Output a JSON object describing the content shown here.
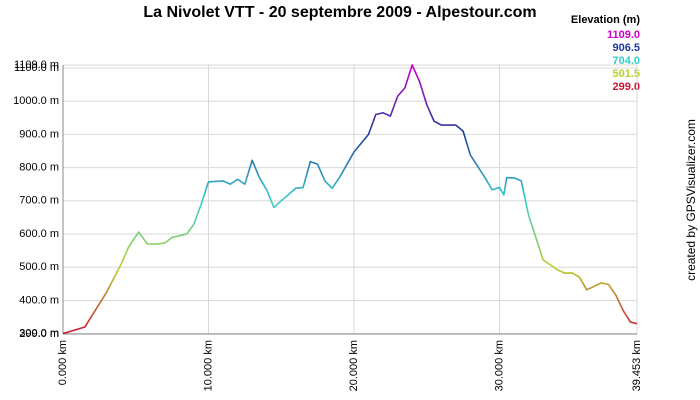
{
  "chart_data": {
    "type": "line",
    "title": "La Nivolet VTT - 20 septembre 2009 - Alpestour.com",
    "credit": "created by GPSVisualizer.com",
    "legend_title": "Elevation (m)",
    "color_scale": [
      {
        "value": 1109.0,
        "label": "1109.0",
        "color": "#cc00cc"
      },
      {
        "value": 906.5,
        "label": "906.5",
        "color": "#1f3a9e"
      },
      {
        "value": 704.0,
        "label": "704.0",
        "color": "#33cccc"
      },
      {
        "value": 501.5,
        "label": "501.5",
        "color": "#b5d22a"
      },
      {
        "value": 299.0,
        "label": "299.0",
        "color": "#cc1133"
      }
    ],
    "x": [
      0,
      1.5,
      3,
      4,
      4.5,
      5.2,
      5.8,
      6.5,
      7,
      7.5,
      8.5,
      9,
      9.5,
      10,
      11,
      11.5,
      12,
      12.5,
      13,
      13.5,
      14,
      14.5,
      15,
      16,
      16.5,
      17,
      17.5,
      18,
      18.5,
      19,
      20,
      21,
      21.5,
      22,
      22.5,
      23,
      23.5,
      24,
      24.5,
      25,
      25.5,
      26,
      27,
      27.5,
      28,
      29,
      29.5,
      30,
      30.3,
      30.5,
      31,
      31.5,
      32,
      33,
      34,
      34.5,
      35,
      35.5,
      36,
      37,
      37.5,
      38,
      38.5,
      39,
      39.453
    ],
    "values": [
      300,
      320,
      425,
      510,
      560,
      606,
      570,
      570,
      573,
      590,
      600,
      630,
      690,
      757,
      760,
      750,
      765,
      750,
      822,
      770,
      733,
      680,
      700,
      738,
      740,
      818,
      810,
      760,
      738,
      770,
      847,
      900,
      960,
      965,
      955,
      1015,
      1040,
      1109,
      1060,
      990,
      940,
      928,
      928,
      910,
      838,
      770,
      733,
      740,
      718,
      770,
      769,
      760,
      657,
      522,
      492,
      482,
      483,
      470,
      432,
      453,
      448,
      416,
      370,
      335,
      330
    ],
    "xlim": [
      0,
      39.453
    ],
    "xticks": [
      {
        "value": 0,
        "label": "0.000 km"
      },
      {
        "value": 10,
        "label": "10.000 km"
      },
      {
        "value": 20,
        "label": "20.000 km"
      },
      {
        "value": 30,
        "label": "30.000 km"
      },
      {
        "value": 39.453,
        "label": "39.453 km"
      }
    ],
    "ylim": [
      299,
      1109
    ],
    "yticks": [
      {
        "value": 299,
        "label": "299.0 m"
      },
      {
        "value": 300,
        "label": "300.0 m"
      },
      {
        "value": 400,
        "label": "400.0 m"
      },
      {
        "value": 500,
        "label": "500.0 m"
      },
      {
        "value": 600,
        "label": "600.0 m"
      },
      {
        "value": 700,
        "label": "700.0 m"
      },
      {
        "value": 800,
        "label": "800.0 m"
      },
      {
        "value": 900,
        "label": "900.0 m"
      },
      {
        "value": 1000,
        "label": "1000.0 m"
      },
      {
        "value": 1100,
        "label": "1100.0 m"
      },
      {
        "value": 1109,
        "label": "1109.0 m"
      }
    ],
    "grid": true
  }
}
